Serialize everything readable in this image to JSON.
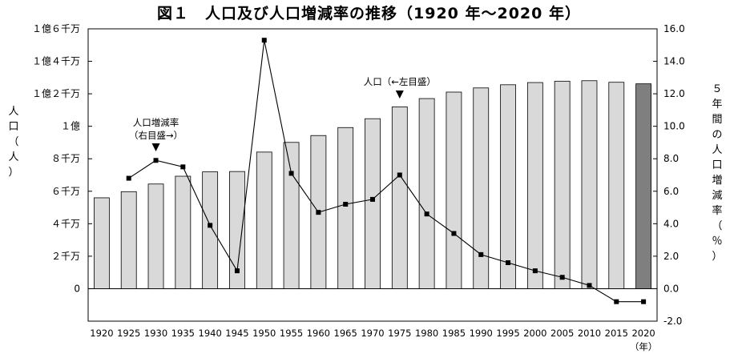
{
  "chart_data": {
    "type": "bar",
    "title": "図１　人口及び人口増減率の推移（1920 年～2020 年）",
    "ylabel_left": "人口（人）",
    "ylabel_right": "５年間の人口増減率（％）",
    "xunit": "（年）",
    "categories": [
      "1920",
      "1925",
      "1930",
      "1935",
      "1940",
      "1945",
      "1950",
      "1955",
      "1960",
      "1965",
      "1970",
      "1975",
      "1980",
      "1985",
      "1990",
      "1995",
      "2000",
      "2005",
      "2010",
      "2015",
      "2020"
    ],
    "left_axis": {
      "ticks": [
        0,
        20000000,
        40000000,
        60000000,
        80000000,
        100000000,
        120000000,
        140000000,
        160000000
      ],
      "tick_labels": [
        "0",
        "２千万",
        "４千万",
        "６千万",
        "８千万",
        "１億",
        "１億２千万",
        "１億４千万",
        "１億６千万"
      ],
      "ylim": [
        -20000000,
        160000000
      ]
    },
    "right_axis": {
      "ticks": [
        -2.0,
        0.0,
        2.0,
        4.0,
        6.0,
        8.0,
        10.0,
        12.0,
        14.0,
        16.0
      ],
      "tick_labels": [
        "-2.0",
        "0.0",
        "2.0",
        "4.0",
        "6.0",
        "8.0",
        "10.0",
        "12.0",
        "14.0",
        "16.0"
      ],
      "ylim": [
        -2.0,
        16.0
      ]
    },
    "series": [
      {
        "name": "人口（←左目盛）",
        "type": "bar",
        "axis": "left",
        "values": [
          55960000,
          59740000,
          64450000,
          69250000,
          71930000,
          72150000,
          84120000,
          90080000,
          94300000,
          99210000,
          104670000,
          111940000,
          117060000,
          121050000,
          123610000,
          125570000,
          126930000,
          127770000,
          128060000,
          127100000,
          126150000
        ]
      },
      {
        "name": "人口増減率（右目盛→）",
        "type": "line",
        "axis": "right",
        "values": [
          null,
          6.8,
          7.9,
          7.5,
          3.9,
          1.1,
          15.3,
          7.1,
          4.7,
          5.2,
          5.5,
          7.0,
          4.6,
          3.4,
          2.1,
          1.6,
          1.1,
          0.7,
          0.2,
          -0.8,
          -0.8
        ]
      }
    ],
    "annotations": [
      {
        "lines": [
          "人口増減率",
          "（右目盛→）"
        ],
        "points_to": "1930"
      },
      {
        "lines": [
          "人口（←左目盛）"
        ],
        "points_to": "1975"
      }
    ],
    "colors": {
      "bar": "#d9d9d9",
      "bar_highlight": "#7f7f7f",
      "bar_stroke": "#000000",
      "line": "#000000"
    },
    "highlight_category": "2020",
    "grid": false,
    "legend": "none"
  }
}
